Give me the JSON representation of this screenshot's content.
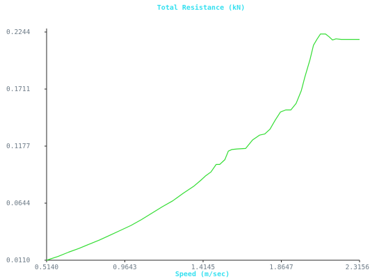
{
  "chart_data": {
    "type": "line",
    "title": "Total Resistance (kN)",
    "xlabel": "Speed (m/sec)",
    "ylabel": "",
    "xlim": [
      0.514,
      2.3156
    ],
    "ylim": [
      0.011,
      0.2244
    ],
    "x_ticks": [
      "0.5140",
      "0.9643",
      "1.4145",
      "1.8647",
      "2.3156"
    ],
    "y_ticks": [
      "0.2244",
      "0.1711",
      "0.1177",
      "0.0644",
      "0.0110"
    ],
    "grid": false,
    "series": [
      {
        "color": "#33dd33",
        "x": [
          0.514,
          0.58,
          0.64,
          0.7,
          0.76,
          0.82,
          0.88,
          0.94,
          1.0,
          1.06,
          1.12,
          1.18,
          1.24,
          1.3,
          1.36,
          1.4,
          1.43,
          1.46,
          1.49,
          1.51,
          1.54,
          1.56,
          1.58,
          1.61,
          1.66,
          1.7,
          1.74,
          1.77,
          1.8,
          1.83,
          1.86,
          1.89,
          1.92,
          1.95,
          1.98,
          2.0,
          2.03,
          2.05,
          2.07,
          2.09,
          2.12,
          2.14,
          2.16,
          2.18,
          2.21,
          2.24,
          2.27,
          2.3156
        ],
        "values": [
          0.011,
          0.0145,
          0.0185,
          0.022,
          0.026,
          0.03,
          0.0345,
          0.039,
          0.0435,
          0.049,
          0.055,
          0.061,
          0.0665,
          0.0735,
          0.08,
          0.0855,
          0.09,
          0.0935,
          0.1005,
          0.1005,
          0.105,
          0.113,
          0.1145,
          0.115,
          0.1155,
          0.1235,
          0.128,
          0.129,
          0.1335,
          0.142,
          0.1495,
          0.1515,
          0.1515,
          0.1575,
          0.1695,
          0.182,
          0.1985,
          0.212,
          0.2175,
          0.2225,
          0.2225,
          0.22,
          0.217,
          0.218,
          0.2175,
          0.2175,
          0.2175,
          0.2175
        ]
      }
    ]
  }
}
